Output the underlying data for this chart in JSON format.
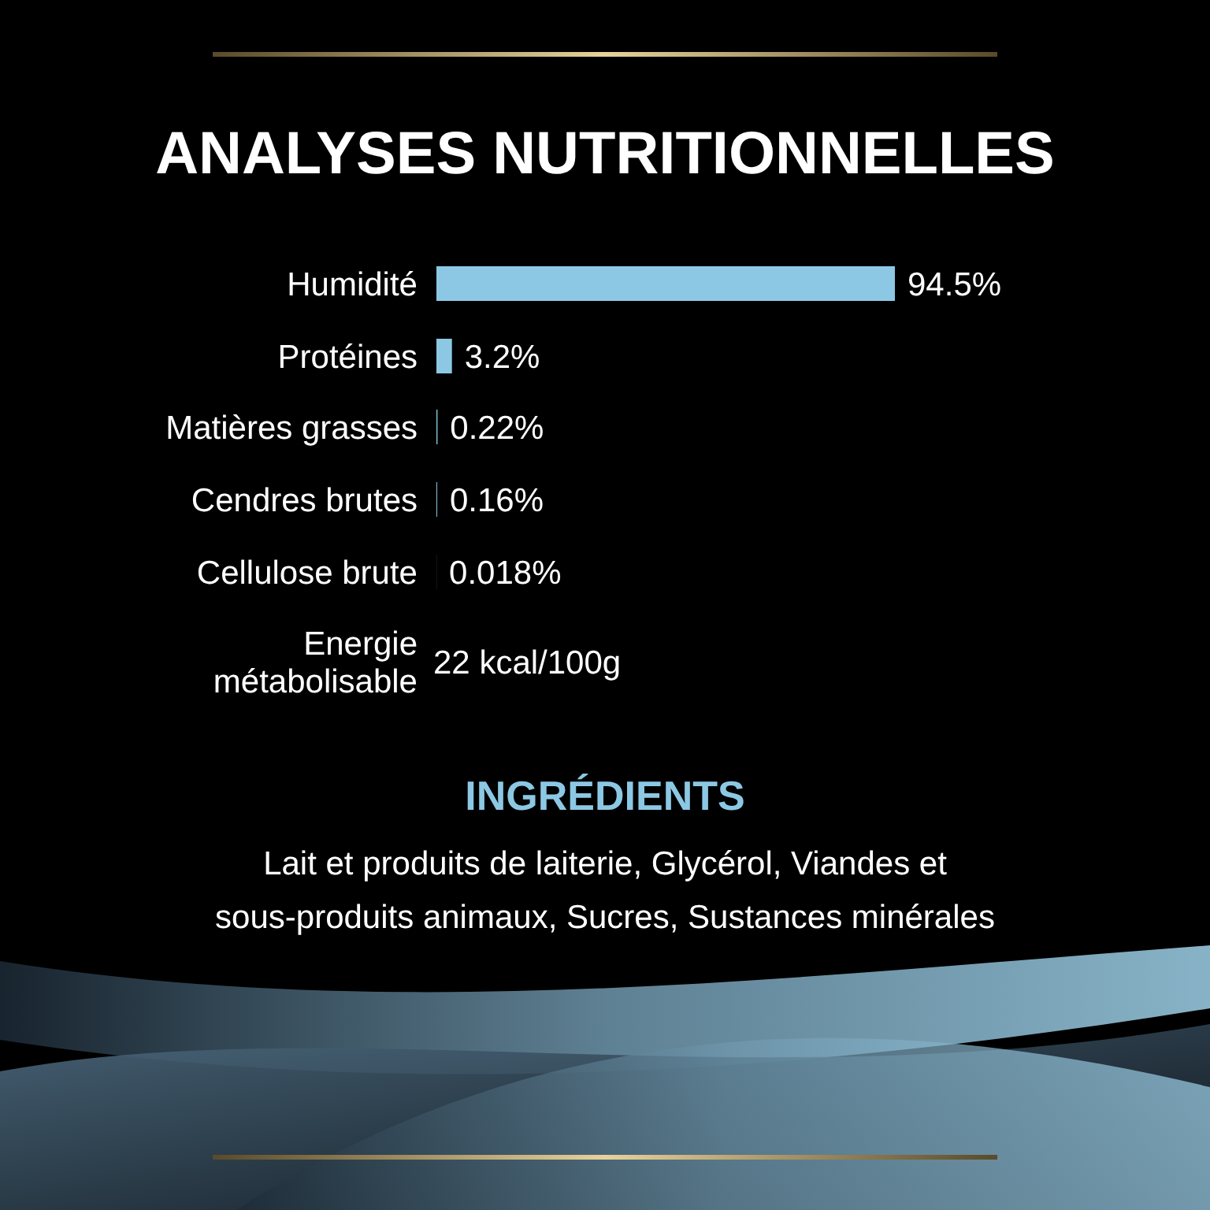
{
  "chart_data": {
    "type": "bar",
    "orientation": "horizontal",
    "title": "ANALYSES NUTRITIONNELLES",
    "categories": [
      "Humidité",
      "Protéines",
      "Matières grasses",
      "Cendres brutes",
      "Cellulose brute",
      "Energie métabolisable"
    ],
    "values": [
      94.5,
      3.2,
      0.22,
      0.16,
      0.018,
      null
    ],
    "value_labels": [
      "94.5%",
      "3.2%",
      "0.22%",
      "0.16%",
      "0.018%",
      "22 kcal/100g"
    ],
    "color": "#8cc8e4",
    "annotations": [
      "INGRÉDIENTS",
      "Lait et produits de laiterie, Glycérol, Viandes et sous-produits animaux, Sucres, Sustances minérales"
    ]
  }
}
